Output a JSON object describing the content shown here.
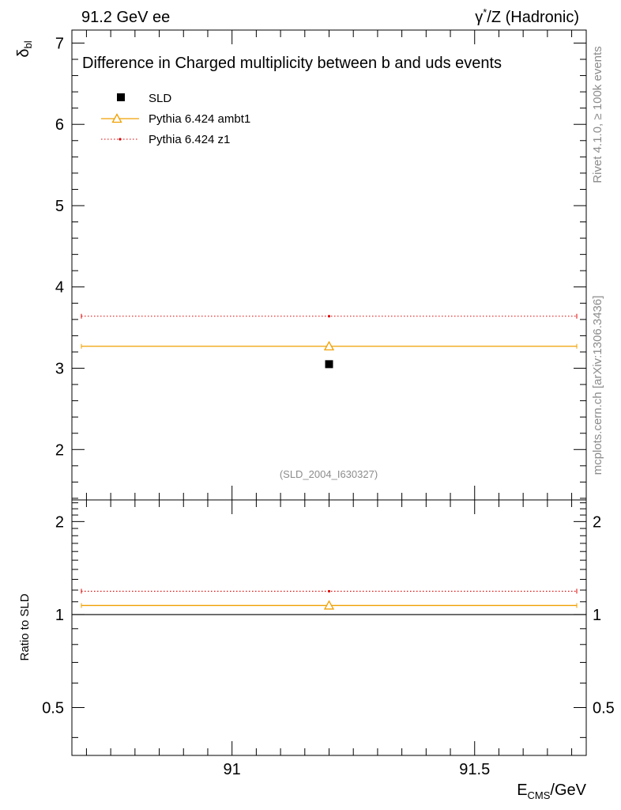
{
  "header": {
    "left": "91.2 GeV ee",
    "right_prefix": "γ",
    "right_sup": "*",
    "right_suffix": "/Z (Hadronic)"
  },
  "side_labels": {
    "rivet": "Rivet 4.1.0, ≥ 100k events",
    "mcplots": "mcplots.cern.ch [arXiv:1306.3436]"
  },
  "chart_data": [
    {
      "type": "scatter",
      "title": "Difference in Charged multiplicity between b and uds events",
      "watermark": "(SLD_2004_I630327)",
      "ylabel_main": "δ",
      "ylabel_sub": "bl",
      "xlim": [
        90.67,
        91.73
      ],
      "ylim": [
        1.38,
        7.16
      ],
      "yticks": [
        2,
        3,
        4,
        5,
        6,
        7
      ],
      "ytick_labels": [
        "2",
        "3",
        "4",
        "5",
        "6",
        "7"
      ],
      "legend_position": "top-left",
      "series": [
        {
          "name": "SLD",
          "style": "square",
          "color": "#000000",
          "x": [
            91.2
          ],
          "y": [
            3.05
          ],
          "xerr": [
            0
          ]
        },
        {
          "name": "Pythia 6.424 ambt1",
          "style": "triangle-solid",
          "color": "#f0a000",
          "x": [
            91.2
          ],
          "y": [
            3.27
          ],
          "xrange": [
            90.67,
            91.73
          ]
        },
        {
          "name": "Pythia 6.424 z1",
          "style": "dot-dotted",
          "color": "#dd0000",
          "x": [
            91.2
          ],
          "y": [
            3.64
          ],
          "xrange": [
            90.67,
            91.73
          ]
        }
      ]
    },
    {
      "type": "scatter",
      "title": "",
      "ylabel": "Ratio to SLD",
      "xlabel_main": "E",
      "xlabel_sub": "CMS",
      "xlabel_suffix": "/GeV",
      "xlim": [
        90.67,
        91.73
      ],
      "ylim": [
        0.35,
        2.35
      ],
      "log_y": true,
      "yticks": [
        0.5,
        1,
        2
      ],
      "ytick_labels": [
        "0.5",
        "1",
        "2"
      ],
      "xticks": [
        91,
        91.5
      ],
      "xtick_labels": [
        "91",
        "91.5"
      ],
      "series": [
        {
          "name": "Pythia 6.424 ambt1",
          "style": "triangle-solid",
          "color": "#f0a000",
          "x": [
            91.2
          ],
          "y": [
            1.07
          ]
        },
        {
          "name": "Pythia 6.424 z1",
          "style": "dot-dotted",
          "color": "#dd0000",
          "x": [
            91.2
          ],
          "y": [
            1.19
          ]
        }
      ],
      "reference_line": 1
    }
  ]
}
